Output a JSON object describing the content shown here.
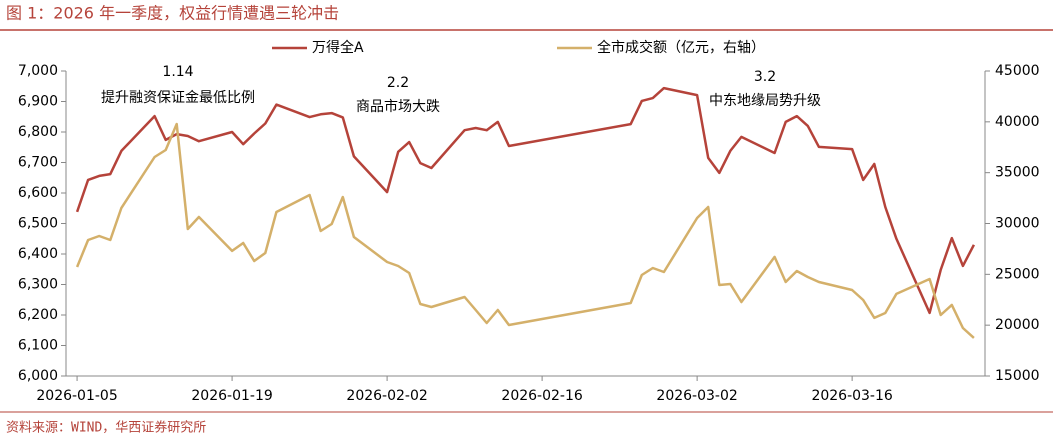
{
  "chart_data": {
    "type": "line",
    "title": "图 1：2026 年一季度，权益行情遭遇三轮冲击",
    "source": "资料来源：WIND，华西证券研究所",
    "annotations": [
      "1.14",
      "提升融资保证金最低比例",
      "2.2",
      "商品市场大跌",
      "3.2",
      "中东地缘局势升级"
    ],
    "x": [
      "2026-01-05",
      "2026-01-06",
      "2026-01-07",
      "2026-01-08",
      "2026-01-09",
      "2026-01-12",
      "2026-01-13",
      "2026-01-14",
      "2026-01-15",
      "2026-01-16",
      "2026-01-19",
      "2026-01-20",
      "2026-01-21",
      "2026-01-22",
      "2026-01-23",
      "2026-01-26",
      "2026-01-27",
      "2026-01-28",
      "2026-01-29",
      "2026-01-30",
      "2026-02-02",
      "2026-02-03",
      "2026-02-04",
      "2026-02-05",
      "2026-02-06",
      "2026-02-09",
      "2026-02-10",
      "2026-02-11",
      "2026-02-12",
      "2026-02-13",
      "2026-02-24",
      "2026-02-25",
      "2026-02-26",
      "2026-02-27",
      "2026-03-02",
      "2026-03-03",
      "2026-03-04",
      "2026-03-05",
      "2026-03-06",
      "2026-03-09",
      "2026-03-10",
      "2026-03-11",
      "2026-03-12",
      "2026-03-13",
      "2026-03-16",
      "2026-03-17",
      "2026-03-18",
      "2026-03-19",
      "2026-03-20",
      "2026-03-23",
      "2026-03-24",
      "2026-03-25",
      "2026-03-26",
      "2026-03-27"
    ],
    "series": [
      {
        "name": "万得全A",
        "color": "#b5433a",
        "values": [
          6538,
          6643,
          6656,
          6662,
          6738,
          6852,
          6774,
          6793,
          6787,
          6770,
          6800,
          6760,
          6795,
          6828,
          6890,
          6849,
          6858,
          6862,
          6848,
          6720,
          6603,
          6735,
          6767,
          6698,
          6682,
          6806,
          6813,
          6806,
          6833,
          6754,
          6826,
          6902,
          6911,
          6944,
          6921,
          6715,
          6666,
          6738,
          6784,
          6731,
          6833,
          6852,
          6820,
          6751,
          6744,
          6643,
          6695,
          6554,
          6450,
          6207,
          6348,
          6452,
          6361,
          6430
        ]
      },
      {
        "name": "全市成交额（亿元，右轴）",
        "color": "#d4b06a",
        "axis": "y2",
        "values": [
          25720,
          28380,
          28770,
          28380,
          31530,
          36540,
          37230,
          39790,
          29460,
          30640,
          27300,
          28080,
          26310,
          27100,
          31130,
          32800,
          29260,
          29950,
          32610,
          28670,
          26210,
          25820,
          25130,
          22080,
          21790,
          22770,
          21490,
          20210,
          21490,
          20020,
          22180,
          24930,
          25620,
          25230,
          30540,
          31620,
          23950,
          24050,
          22280,
          26710,
          24250,
          25330,
          24740,
          24250,
          23460,
          22480,
          20710,
          21200,
          23080,
          24540,
          21000,
          21990,
          19720,
          18750
        ]
      }
    ],
    "xlim": [
      "2026-01-04",
      "2026-03-28"
    ],
    "xticks": [
      "2026-01-05",
      "2026-01-19",
      "2026-02-02",
      "2026-02-16",
      "2026-03-02",
      "2026-03-16"
    ],
    "ylim": [
      6000,
      7000
    ],
    "yticks": [
      {
        "value": 6000,
        "label": "6,000"
      },
      {
        "value": 6100,
        "label": "6,100"
      },
      {
        "value": 6200,
        "label": "6,200"
      },
      {
        "value": 6300,
        "label": "6,300"
      },
      {
        "value": 6400,
        "label": "6,400"
      },
      {
        "value": 6500,
        "label": "6,500"
      },
      {
        "value": 6600,
        "label": "6,600"
      },
      {
        "value": 6700,
        "label": "6,700"
      },
      {
        "value": 6800,
        "label": "6,800"
      },
      {
        "value": 6900,
        "label": "6,900"
      },
      {
        "value": 7000,
        "label": "7,000"
      }
    ],
    "y2lim": [
      15000,
      45000
    ],
    "y2ticks": [
      15000,
      20000,
      25000,
      30000,
      35000,
      40000,
      45000
    ],
    "grid": false
  }
}
